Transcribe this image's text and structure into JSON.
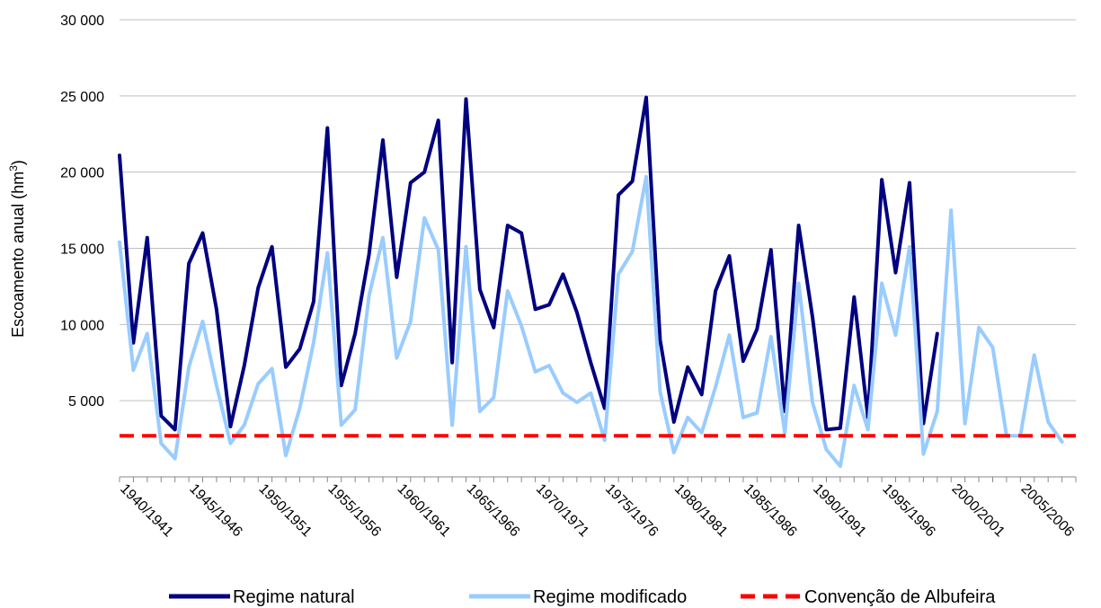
{
  "chart_data": {
    "type": "line",
    "ylabel_main": "Escoamento anual (hm",
    "ylabel_sup": "3",
    "ylabel_end": ")",
    "ylim": [
      0,
      30000
    ],
    "y_ticks": [
      5000,
      10000,
      15000,
      20000,
      25000,
      30000
    ],
    "y_tick_labels": [
      "5 000",
      "10 000",
      "15 000",
      "20 000",
      "25 000",
      "30 000"
    ],
    "x_start_year": 1940,
    "x_tick_labels": [
      "1940/1941",
      "1945/1946",
      "1950/1951",
      "1955/1956",
      "1960/1961",
      "1965/1966",
      "1970/1971",
      "1975/1976",
      "1980/1981",
      "1985/1986",
      "1990/1991",
      "1995/1996",
      "2000/2001",
      "2005/2006"
    ],
    "x_tick_years": [
      1940,
      1945,
      1950,
      1955,
      1960,
      1965,
      1970,
      1975,
      1980,
      1985,
      1990,
      1995,
      2000,
      2005
    ],
    "gridlines": true,
    "legend_position": "bottom",
    "series": [
      {
        "name": "Regime natural",
        "color": "#000080",
        "style": "solid",
        "values": [
          21100,
          8800,
          15700,
          4000,
          3100,
          14000,
          16000,
          11000,
          3300,
          7300,
          12400,
          15100,
          7200,
          8400,
          11500,
          22900,
          6000,
          9400,
          14600,
          22100,
          13100,
          19300,
          20000,
          23400,
          7500,
          24800,
          12300,
          9800,
          16500,
          16000,
          11000,
          11300,
          13300,
          10800,
          7500,
          4500,
          18500,
          19400,
          24900,
          9000,
          3600,
          7200,
          5400,
          12200,
          14500,
          7600,
          9700,
          14900,
          4300,
          16500,
          10500,
          3100,
          3200,
          11800,
          3900,
          19500,
          13400,
          19300,
          3500,
          9400
        ]
      },
      {
        "name": "Regime modificado",
        "color": "#99ccff",
        "style": "solid",
        "values": [
          15400,
          7000,
          9400,
          2200,
          1200,
          7200,
          10200,
          6000,
          2200,
          3400,
          6100,
          7100,
          1400,
          4500,
          8800,
          14700,
          3400,
          4400,
          11900,
          15700,
          7800,
          10200,
          17000,
          14900,
          3400,
          15100,
          4300,
          5200,
          12200,
          9900,
          6900,
          7300,
          5500,
          4900,
          5500,
          2400,
          13300,
          14800,
          19700,
          5600,
          1600,
          3900,
          2900,
          5900,
          9300,
          3900,
          4200,
          9200,
          2900,
          12700,
          4900,
          1800,
          700,
          6000,
          3100,
          12700,
          9300,
          15100,
          1500,
          4300,
          17500,
          3500,
          9800,
          8500,
          2700,
          2700,
          8000,
          3600,
          2300
        ]
      },
      {
        "name": "Convenção de Albufeira",
        "color": "#ff0000",
        "style": "dashed",
        "constant": 2700
      }
    ]
  }
}
